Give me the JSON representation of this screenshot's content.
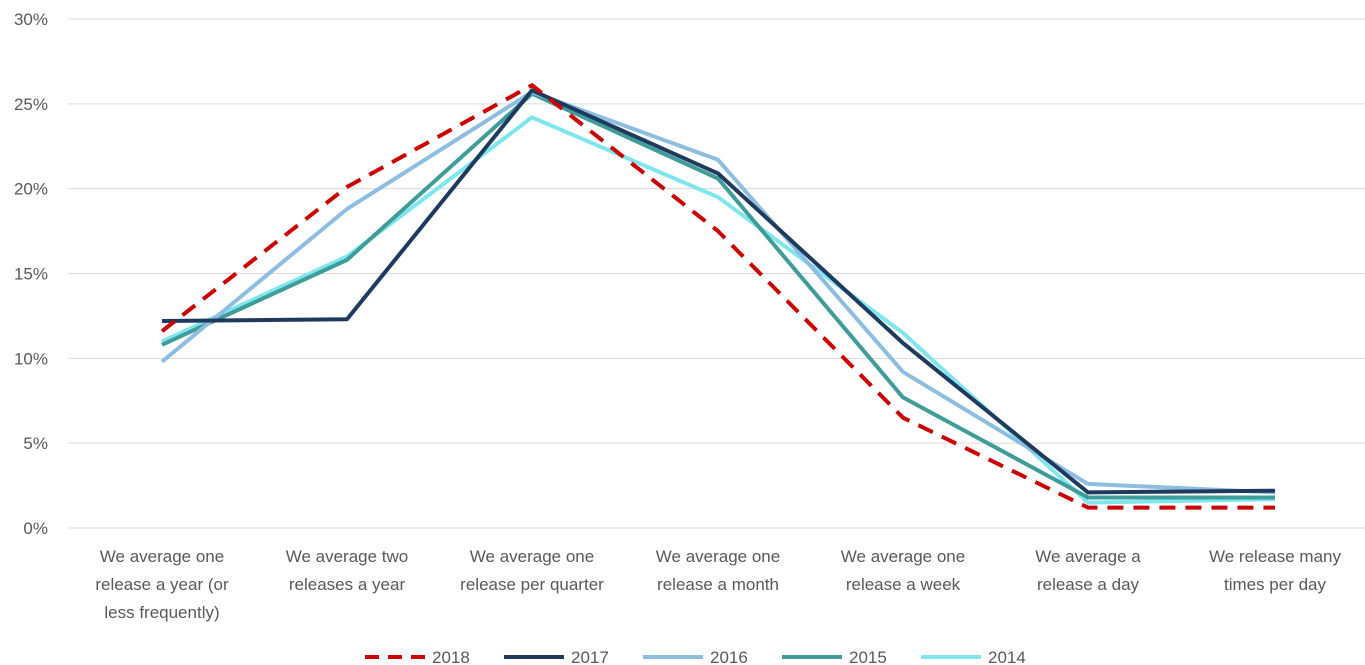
{
  "chart_data": {
    "type": "line",
    "categories": [
      [
        "We average one",
        "release a year (or",
        "less frequently)"
      ],
      [
        "We average two",
        "releases a year"
      ],
      [
        "We average one",
        "release per quarter"
      ],
      [
        "We average one",
        "release a month"
      ],
      [
        "We average one",
        "release a week"
      ],
      [
        "We average a",
        "release a day"
      ],
      [
        "We release many",
        "times per day"
      ]
    ],
    "y_ticks": [
      "0%",
      "5%",
      "10%",
      "15%",
      "20%",
      "25%",
      "30%"
    ],
    "ylim": [
      0,
      30
    ],
    "grid": true,
    "legend_position": "bottom",
    "series": [
      {
        "name": "2018",
        "color": "#cc0000",
        "dashed": true,
        "values": [
          11.6,
          20.1,
          26.1,
          17.5,
          6.5,
          1.2,
          1.2
        ]
      },
      {
        "name": "2017",
        "color": "#1f3a5f",
        "dashed": false,
        "values": [
          12.2,
          12.3,
          25.8,
          20.9,
          10.9,
          2.1,
          2.2
        ]
      },
      {
        "name": "2016",
        "color": "#8dbde0",
        "dashed": false,
        "values": [
          9.8,
          18.8,
          25.7,
          21.7,
          9.2,
          2.6,
          2.1
        ]
      },
      {
        "name": "2015",
        "color": "#3f9c98",
        "dashed": false,
        "values": [
          10.8,
          15.8,
          25.6,
          20.6,
          7.7,
          1.8,
          1.8
        ]
      },
      {
        "name": "2014",
        "color": "#7fe6ee",
        "dashed": false,
        "values": [
          11.0,
          16.0,
          24.2,
          19.5,
          11.5,
          1.5,
          1.7
        ]
      }
    ]
  }
}
